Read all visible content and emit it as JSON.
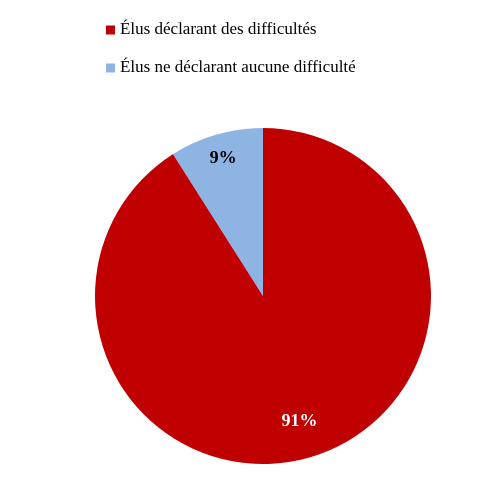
{
  "chart_data": {
    "type": "pie",
    "categories": [
      "Élus déclarant des difficultés",
      "Élus ne déclarant aucune difficulté"
    ],
    "values": [
      91,
      9
    ],
    "value_labels": [
      "91%",
      "9%"
    ],
    "colors": [
      "#c00000",
      "#8eb4e3"
    ],
    "label_colors": [
      "#ffffff",
      "#000000"
    ]
  }
}
